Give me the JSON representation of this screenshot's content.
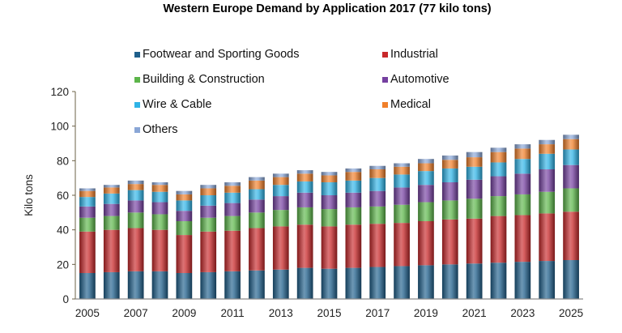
{
  "chart_data": {
    "type": "bar",
    "stacked": true,
    "title": "Western Europe Demand by Application 2017 (77 kilo tons)",
    "xlabel": "",
    "ylabel": "Kilo tons",
    "ylim": [
      0,
      120
    ],
    "yticks": [
      0,
      20,
      40,
      60,
      80,
      100,
      120
    ],
    "grid": false,
    "legend_position": "top",
    "categories": [
      "2005",
      "2006",
      "2007",
      "2008",
      "2009",
      "2010",
      "2011",
      "2012",
      "2013",
      "2014",
      "2015",
      "2016",
      "2017",
      "2018",
      "2019",
      "2020",
      "2021",
      "2022",
      "2023",
      "2024",
      "2025"
    ],
    "xtick_labels": [
      "2005",
      "2007",
      "2009",
      "2011",
      "2013",
      "2015",
      "2017",
      "2019",
      "2021",
      "2023",
      "2025"
    ],
    "series": [
      {
        "name": "Footwear and Sporting Goods",
        "color": "#1f5f8b",
        "values": [
          15,
          15.5,
          16,
          16,
          15,
          15.5,
          16,
          16.5,
          17,
          18,
          17.5,
          18,
          18.5,
          19,
          19.5,
          20,
          20.5,
          21,
          21.5,
          22,
          22.5
        ]
      },
      {
        "name": "Industrial",
        "color": "#c8282a",
        "values": [
          24,
          24.5,
          25,
          24,
          22,
          23.5,
          23.5,
          24.5,
          25,
          25,
          24.5,
          25,
          25,
          25,
          25.5,
          26,
          26,
          27,
          27,
          27.5,
          28
        ]
      },
      {
        "name": "Building & Construction",
        "color": "#5cb54a",
        "values": [
          8,
          8,
          9,
          9,
          8,
          8,
          8.5,
          9,
          9.5,
          10,
          10,
          10,
          10,
          10.5,
          11,
          11,
          11.5,
          11.5,
          12,
          12.5,
          13.5
        ]
      },
      {
        "name": "Automotive",
        "color": "#7540a0",
        "values": [
          6.5,
          7,
          7,
          7,
          6,
          7,
          7.5,
          7.5,
          8,
          8.5,
          8,
          8.5,
          9,
          10,
          10,
          10.5,
          11,
          11.5,
          12,
          13,
          13.5
        ]
      },
      {
        "name": "Wire & Cable",
        "color": "#2fb3e6",
        "values": [
          5.5,
          6,
          6,
          6,
          6,
          6,
          6,
          6,
          6.5,
          6.5,
          7.5,
          7,
          7.5,
          7.5,
          8,
          8,
          7.5,
          8,
          8.5,
          9,
          9
        ]
      },
      {
        "name": "Medical",
        "color": "#f07f2a",
        "values": [
          3.5,
          3.5,
          3.5,
          4,
          3.5,
          4,
          4,
          5,
          4.5,
          4.5,
          4,
          5,
          5,
          4.5,
          4.5,
          5,
          5.5,
          6,
          6,
          5.5,
          6
        ]
      },
      {
        "name": "Others",
        "color": "#8aa6d6",
        "values": [
          1.5,
          1.5,
          2,
          1.5,
          2,
          2,
          2,
          2,
          2,
          2,
          2,
          2,
          2,
          2,
          2.5,
          2.5,
          3,
          2.5,
          2.5,
          2.5,
          2.5
        ]
      }
    ]
  }
}
